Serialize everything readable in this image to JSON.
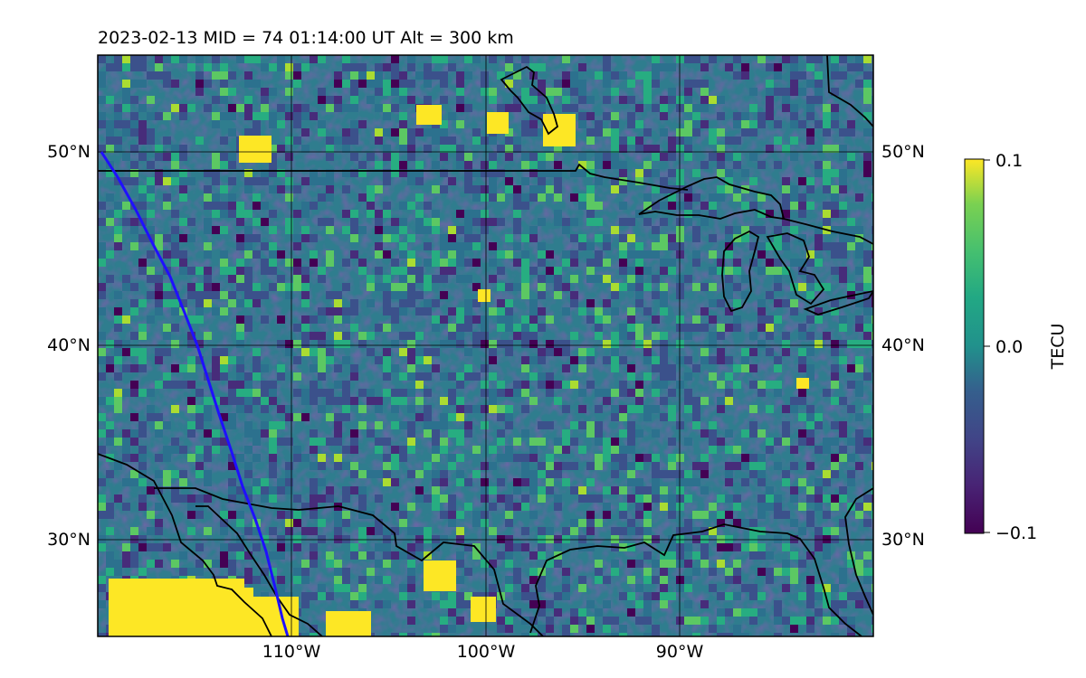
{
  "header": {
    "title": "2023-02-13  MID =  74    01:14:00  UT  Alt = 300 km"
  },
  "map": {
    "lat_labels_left": [
      "50°N",
      "40°N",
      "30°N"
    ],
    "lat_labels_right": [
      "50°N",
      "40°N",
      "30°N"
    ],
    "lon_labels": [
      "110°W",
      "100°W",
      "90°W"
    ],
    "gridlines": true,
    "colormap": "viridis",
    "features": [
      "coastlines",
      "country-borders",
      "great-lakes",
      "satellite-track"
    ],
    "track_color": "#1f10ff",
    "extent": {
      "lon": [
        -120,
        -80
      ],
      "lat": [
        25,
        55
      ]
    }
  },
  "colorbar": {
    "label": "TECU",
    "ticks": [
      "0.1",
      "0.0",
      "−0.1"
    ],
    "range": [
      -0.1,
      0.1
    ]
  }
}
